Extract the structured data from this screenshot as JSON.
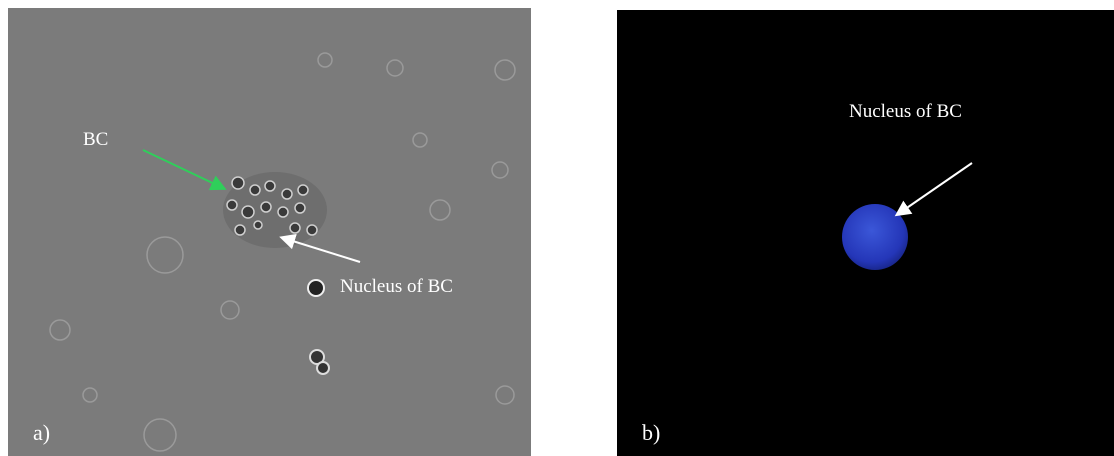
{
  "panels": [
    {
      "label": "a)",
      "annotations": [
        "BC",
        "Nucleus of BC"
      ]
    },
    {
      "label": "b)",
      "annotations": [
        "Nucleus of BC"
      ]
    }
  ]
}
